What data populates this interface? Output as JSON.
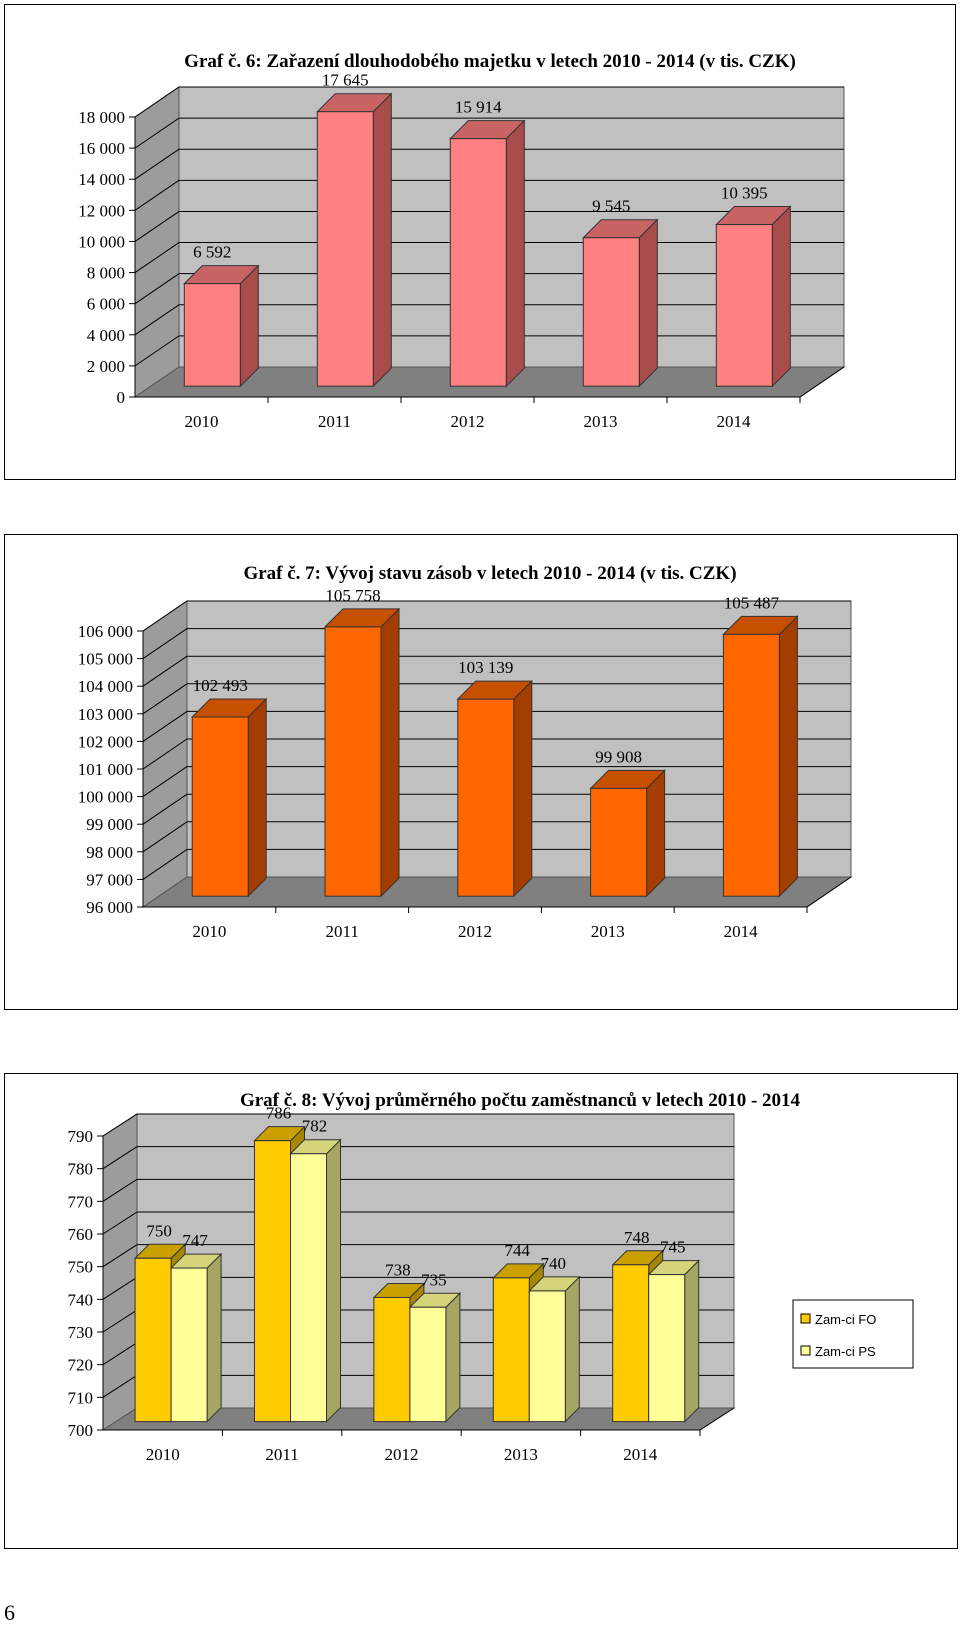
{
  "page": {
    "number": "6"
  },
  "chart_data": [
    {
      "type": "bar",
      "title": "Graf č. 6: Zařazení dlouhodobého  majetku  v letech 2010 - 2014 (v  tis. CZK)",
      "categories": [
        "2010",
        "2011",
        "2012",
        "2013",
        "2014"
      ],
      "series": [
        {
          "values": [
            6592,
            17645,
            15914,
            9545,
            10395
          ],
          "labels": [
            "6 592",
            "17 645",
            "15 914",
            "9 545",
            "10 395"
          ]
        }
      ],
      "ylim": [
        0,
        18000
      ],
      "yticks": [
        0,
        2000,
        4000,
        6000,
        8000,
        10000,
        12000,
        14000,
        16000,
        18000
      ],
      "ytick_labels": [
        "0",
        "2 000",
        "4 000",
        "6 000",
        "8 000",
        "10 000",
        "12 000",
        "14 000",
        "16 000",
        "18 000"
      ],
      "grid": true,
      "colors": {
        "front": "#ff8080",
        "side": "#a84c4c",
        "top": "#c86464"
      }
    },
    {
      "type": "bar",
      "title": "Graf  č. 7: Vývoj  stavu  zásob  v letech 2010 - 2014 (v  tis. CZK)",
      "categories": [
        "2010",
        "2011",
        "2012",
        "2013",
        "2014"
      ],
      "series": [
        {
          "values": [
            102493,
            105758,
            103139,
            99908,
            105487
          ],
          "labels": [
            "102 493",
            "105 758",
            "103 139",
            "99 908",
            "105 487"
          ]
        }
      ],
      "ylim": [
        96000,
        106000
      ],
      "yticks": [
        96000,
        97000,
        98000,
        99000,
        100000,
        101000,
        102000,
        103000,
        104000,
        105000,
        106000
      ],
      "ytick_labels": [
        "96 000",
        "97 000",
        "98 000",
        "99 000",
        "100 000",
        "101 000",
        "102 000",
        "103 000",
        "104 000",
        "105 000",
        "106 000"
      ],
      "grid": true,
      "colors": {
        "front": "#ff6600",
        "side": "#a33d00",
        "top": "#c75000"
      }
    },
    {
      "type": "bar",
      "title": "Graf  č. 8: Vývoj  průměrného  počtu  zaměstnanců  v letech 2010 - 2014",
      "categories": [
        "2010",
        "2011",
        "2012",
        "2013",
        "2014"
      ],
      "series": [
        {
          "name": "Zam-ci FO",
          "values": [
            750,
            786,
            738,
            744,
            748
          ],
          "labels": [
            "750",
            "786",
            "738",
            "744",
            "748"
          ]
        },
        {
          "name": "Zam-ci PS",
          "values": [
            747,
            782,
            735,
            740,
            745
          ],
          "labels": [
            "747",
            "782",
            "735",
            "740",
            "745"
          ]
        }
      ],
      "ylim": [
        700,
        790
      ],
      "yticks": [
        700,
        710,
        720,
        730,
        740,
        750,
        760,
        770,
        780,
        790
      ],
      "ytick_labels": [
        "700",
        "710",
        "720",
        "730",
        "740",
        "750",
        "760",
        "770",
        "780",
        "790"
      ],
      "grid": true,
      "legend": "right",
      "colors": [
        {
          "front": "#ffcc00",
          "side": "#a68500",
          "top": "#c9a000"
        },
        {
          "front": "#ffff99",
          "side": "#a6a663",
          "top": "#d4d47a"
        }
      ]
    }
  ]
}
